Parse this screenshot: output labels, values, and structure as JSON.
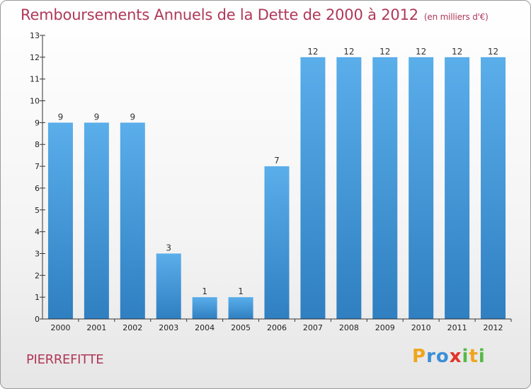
{
  "chart_data": {
    "type": "bar",
    "title": "Remboursements Annuels de la Dette de 2000 à 2012",
    "subtitle": "(en milliers d'€)",
    "categories": [
      "2000",
      "2001",
      "2002",
      "2003",
      "2004",
      "2005",
      "2006",
      "2007",
      "2008",
      "2009",
      "2010",
      "2011",
      "2012"
    ],
    "values": [
      9,
      9,
      9,
      3,
      1,
      1,
      7,
      12,
      12,
      12,
      12,
      12,
      12
    ],
    "ylim": [
      0,
      13
    ],
    "yticks": [
      "0",
      "1",
      "2",
      "3",
      "4",
      "5",
      "6",
      "7",
      "8",
      "9",
      "10",
      "11",
      "12",
      "13"
    ],
    "xlabel": "",
    "ylabel": "",
    "grid": false,
    "bar_color": "#3d93d6"
  },
  "footer": {
    "commune": "PIERREFITTE",
    "logo": [
      "P",
      "r",
      "o",
      "x",
      "i",
      "t",
      "i"
    ],
    "logo_colors": [
      "#f0a51c",
      "#3b8fd6",
      "#3b8fd6",
      "#e2332a",
      "#56b947",
      "#f0a51c",
      "#56b947"
    ]
  }
}
